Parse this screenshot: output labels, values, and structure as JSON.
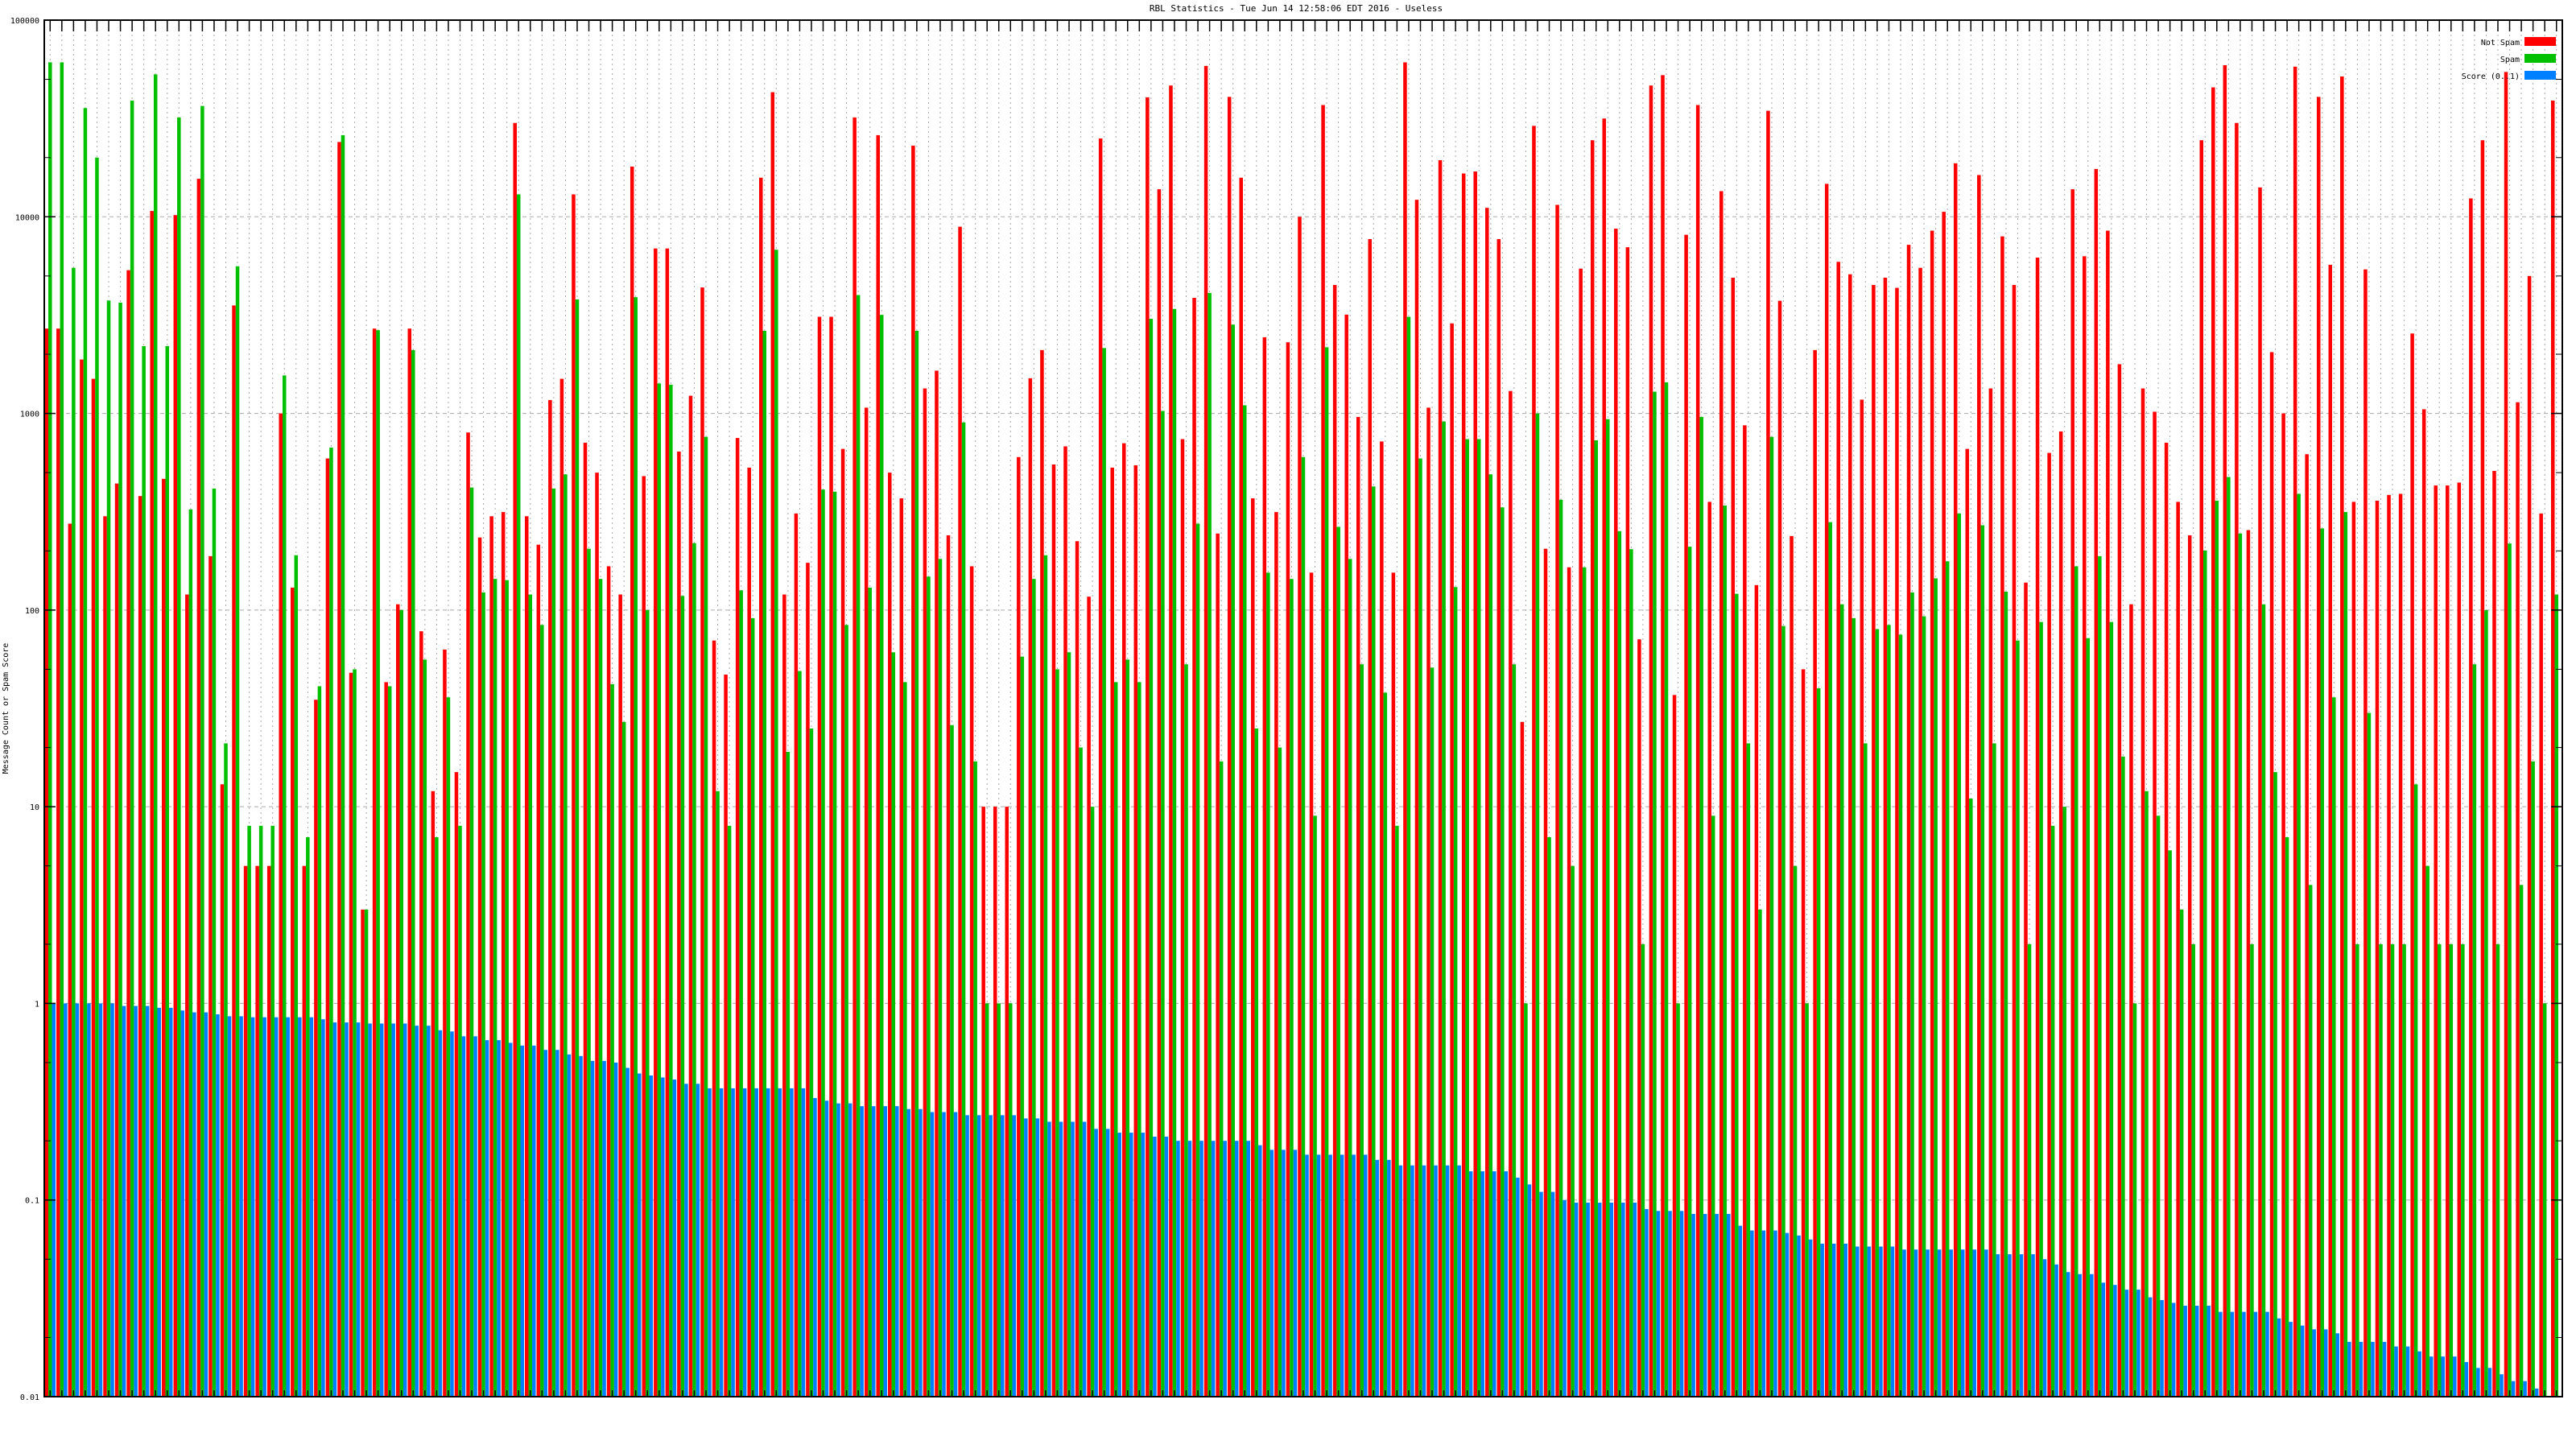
{
  "chart_data": {
    "type": "bar",
    "title": "RBL Statistics - Tue Jun 14 12:58:06 EDT 2016 - Useless",
    "xlabel": "",
    "ylabel": "Message Count or Spam Score",
    "yscale": "log",
    "ylim": [
      0.01,
      100000
    ],
    "y_tick_labels": [
      "0.01",
      "0.1",
      "1",
      "10",
      "100",
      "1000",
      "10000",
      "100000"
    ],
    "grid": true,
    "legend_position": "top-right",
    "series": [
      {
        "name": "Not Spam",
        "color": "#ff0000",
        "values": [
          2700,
          2700,
          275,
          1880,
          1500,
          300,
          440,
          5350,
          380,
          10700,
          465,
          10200,
          120,
          15600,
          188,
          13,
          3540,
          5,
          5,
          5,
          1000,
          130,
          5,
          35,
          590,
          24000,
          48,
          3,
          2700,
          43,
          107,
          2700,
          78,
          12,
          63,
          15,
          800,
          234,
          300,
          315,
          30000,
          300,
          215,
          1170,
          1500,
          13000,
          710,
          500,
          167,
          120,
          18000,
          480,
          6900,
          6900,
          640,
          1230,
          4370,
          70,
          47,
          750,
          530,
          15800,
          43000,
          120,
          310,
          174,
          3100,
          3100,
          660,
          32000,
          1070,
          26000,
          500,
          370,
          23000,
          1340,
          1650,
          240,
          8900,
          167,
          10,
          10,
          10,
          600,
          1510,
          2100,
          550,
          680,
          224,
          117,
          25000,
          530,
          705,
          545,
          40500,
          13800,
          46500,
          740,
          3870,
          58500,
          245,
          40700,
          15800,
          370,
          2440,
          315,
          2300,
          10000,
          155,
          37000,
          4500,
          3180,
          960,
          7700,
          720,
          155,
          61000,
          12200,
          1070,
          19400,
          2870,
          16600,
          17000,
          11100,
          7700,
          1300,
          27,
          29000,
          205,
          11500,
          165,
          5450,
          24500,
          31600,
          8700,
          7000,
          71,
          46500,
          52500,
          37,
          8100,
          37000,
          355,
          13500,
          4900,
          870,
          134,
          34600,
          3740,
          238,
          50,
          2100,
          14700,
          5900,
          5100,
          1175,
          4500,
          4900,
          4350,
          7200,
          5500,
          8500,
          10600,
          18700,
          660,
          16300,
          1340,
          7950,
          4500,
          138,
          6200,
          630,
          810,
          13800,
          6300,
          17500,
          8500,
          1780,
          107,
          1340,
          1020,
          710,
          355,
          240,
          24500,
          45500,
          59000,
          30000,
          255,
          14100,
          2050,
          1000,
          58000,
          620,
          40700,
          5700,
          51700,
          355,
          5400,
          360,
          385,
          390,
          2550,
          1050,
          430,
          430,
          445,
          12400,
          24500,
          510,
          54500,
          1140,
          5000,
          310,
          39000
        ]
      },
      {
        "name": "Spam",
        "color": "#00c000",
        "values": [
          61000,
          61000,
          5500,
          35700,
          20000,
          3750,
          3660,
          39000,
          2200,
          53000,
          2200,
          32000,
          325,
          36600,
          415,
          21,
          5600,
          8,
          8,
          8,
          1560,
          190,
          7,
          41,
          670,
          26000,
          50,
          3,
          2650,
          41,
          100,
          2100,
          56,
          7,
          36,
          8,
          420,
          123,
          144,
          142,
          13000,
          120,
          84,
          415,
          490,
          3800,
          205,
          144,
          42,
          27,
          3900,
          100,
          1420,
          1400,
          118,
          219,
          760,
          12,
          8,
          126,
          91,
          2630,
          6800,
          19,
          49,
          25,
          410,
          400,
          84,
          4000,
          130,
          3170,
          61,
          43,
          2630,
          148,
          182,
          26,
          900,
          17,
          1,
          1,
          1,
          58,
          144,
          190,
          50,
          61,
          20,
          10,
          2150,
          43,
          56,
          43,
          3030,
          1030,
          3400,
          53,
          275,
          4100,
          17,
          2830,
          1100,
          25,
          155,
          20,
          144,
          600,
          9,
          2170,
          265,
          182,
          53,
          425,
          38,
          8,
          3100,
          590,
          51,
          910,
          131,
          740,
          740,
          490,
          333,
          53,
          1,
          1000,
          7,
          364,
          5,
          165,
          730,
          935,
          252,
          204,
          2,
          1290,
          1440,
          1,
          210,
          960,
          9,
          340,
          121,
          21,
          3,
          760,
          83,
          5,
          1,
          40,
          280,
          107,
          91,
          21,
          80,
          84,
          75,
          123,
          93,
          145,
          177,
          310,
          11,
          270,
          21,
          124,
          70,
          2,
          87,
          8,
          10,
          167,
          72,
          188,
          87,
          18,
          1,
          12,
          9,
          6,
          3,
          2,
          201,
          360,
          475,
          245,
          2,
          107,
          15,
          7,
          390,
          4,
          260,
          36,
          315,
          2,
          30,
          2,
          2,
          2,
          13,
          5,
          2,
          2,
          2,
          53,
          100,
          2,
          218,
          4,
          17,
          1,
          120
        ]
      },
      {
        "name": "Score (0..1)",
        "color": "#0080ff",
        "values": [
          1,
          1,
          1,
          1,
          1,
          1,
          0.97,
          0.97,
          0.97,
          0.95,
          0.95,
          0.92,
          0.9,
          0.9,
          0.88,
          0.86,
          0.86,
          0.85,
          0.85,
          0.85,
          0.85,
          0.85,
          0.85,
          0.83,
          0.8,
          0.8,
          0.8,
          0.79,
          0.79,
          0.79,
          0.79,
          0.77,
          0.77,
          0.73,
          0.72,
          0.68,
          0.68,
          0.65,
          0.65,
          0.63,
          0.61,
          0.61,
          0.58,
          0.58,
          0.55,
          0.54,
          0.51,
          0.51,
          0.5,
          0.47,
          0.44,
          0.43,
          0.42,
          0.41,
          0.39,
          0.39,
          0.37,
          0.37,
          0.37,
          0.37,
          0.37,
          0.37,
          0.37,
          0.37,
          0.37,
          0.33,
          0.32,
          0.31,
          0.31,
          0.3,
          0.3,
          0.3,
          0.3,
          0.29,
          0.29,
          0.28,
          0.28,
          0.28,
          0.27,
          0.27,
          0.27,
          0.27,
          0.27,
          0.26,
          0.26,
          0.25,
          0.25,
          0.25,
          0.25,
          0.23,
          0.23,
          0.22,
          0.22,
          0.22,
          0.21,
          0.21,
          0.2,
          0.2,
          0.2,
          0.2,
          0.2,
          0.2,
          0.2,
          0.19,
          0.18,
          0.18,
          0.18,
          0.17,
          0.17,
          0.17,
          0.17,
          0.17,
          0.17,
          0.16,
          0.16,
          0.15,
          0.15,
          0.15,
          0.15,
          0.15,
          0.15,
          0.14,
          0.14,
          0.14,
          0.14,
          0.13,
          0.12,
          0.11,
          0.11,
          0.1,
          0.097,
          0.097,
          0.097,
          0.097,
          0.097,
          0.097,
          0.09,
          0.088,
          0.088,
          0.088,
          0.085,
          0.085,
          0.085,
          0.085,
          0.074,
          0.07,
          0.07,
          0.07,
          0.068,
          0.066,
          0.063,
          0.06,
          0.06,
          0.06,
          0.058,
          0.058,
          0.058,
          0.058,
          0.056,
          0.056,
          0.056,
          0.056,
          0.056,
          0.056,
          0.056,
          0.056,
          0.053,
          0.053,
          0.053,
          0.053,
          0.05,
          0.047,
          0.043,
          0.042,
          0.042,
          0.038,
          0.037,
          0.035,
          0.035,
          0.032,
          0.031,
          0.03,
          0.029,
          0.029,
          0.029,
          0.027,
          0.027,
          0.027,
          0.027,
          0.027,
          0.025,
          0.024,
          0.023,
          0.022,
          0.022,
          0.021,
          0.019,
          0.019,
          0.019,
          0.019,
          0.018,
          0.018,
          0.017,
          0.016,
          0.016,
          0.016,
          0.015,
          0.014,
          0.014,
          0.013,
          0.012,
          0.012,
          0.011,
          0.01,
          0.01
        ]
      }
    ]
  }
}
